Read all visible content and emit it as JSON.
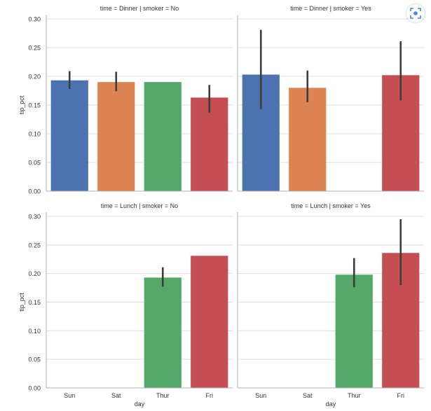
{
  "chart_data": {
    "type": "bar",
    "layout": "facet-grid 2x2",
    "x_label": "day",
    "y_label": "tip_pct",
    "categories": [
      "Sun",
      "Sat",
      "Thur",
      "Fri"
    ],
    "ylim": [
      0,
      0.3
    ],
    "yticks": [
      "0.00",
      "0.05",
      "0.10",
      "0.15",
      "0.20",
      "0.25",
      "0.30"
    ],
    "grid": true,
    "colors": [
      "#4c72b0",
      "#dd8452",
      "#55a868",
      "#c44e52"
    ],
    "panels": [
      {
        "title": "time = Dinner | smoker = No",
        "values": [
          0.193,
          0.19,
          0.19,
          0.163
        ],
        "ci_low": [
          0.178,
          0.174,
          null,
          0.137
        ],
        "ci_high": [
          0.209,
          0.208,
          null,
          0.185
        ]
      },
      {
        "title": "time = Dinner | smoker = Yes",
        "values": [
          0.203,
          0.18,
          null,
          0.202
        ],
        "ci_low": [
          0.143,
          0.155,
          null,
          0.158
        ],
        "ci_high": [
          0.281,
          0.21,
          null,
          0.261
        ]
      },
      {
        "title": "time = Lunch | smoker = No",
        "values": [
          null,
          null,
          0.193,
          0.231
        ],
        "ci_low": [
          null,
          null,
          0.177,
          null
        ],
        "ci_high": [
          null,
          null,
          0.211,
          null
        ]
      },
      {
        "title": "time = Lunch | smoker = Yes",
        "values": [
          null,
          null,
          0.198,
          0.236
        ],
        "ci_low": [
          null,
          null,
          0.176,
          0.18
        ],
        "ci_high": [
          null,
          null,
          0.227,
          0.295
        ]
      }
    ]
  },
  "overlay": {
    "lens_icon": "visual-search-icon"
  }
}
